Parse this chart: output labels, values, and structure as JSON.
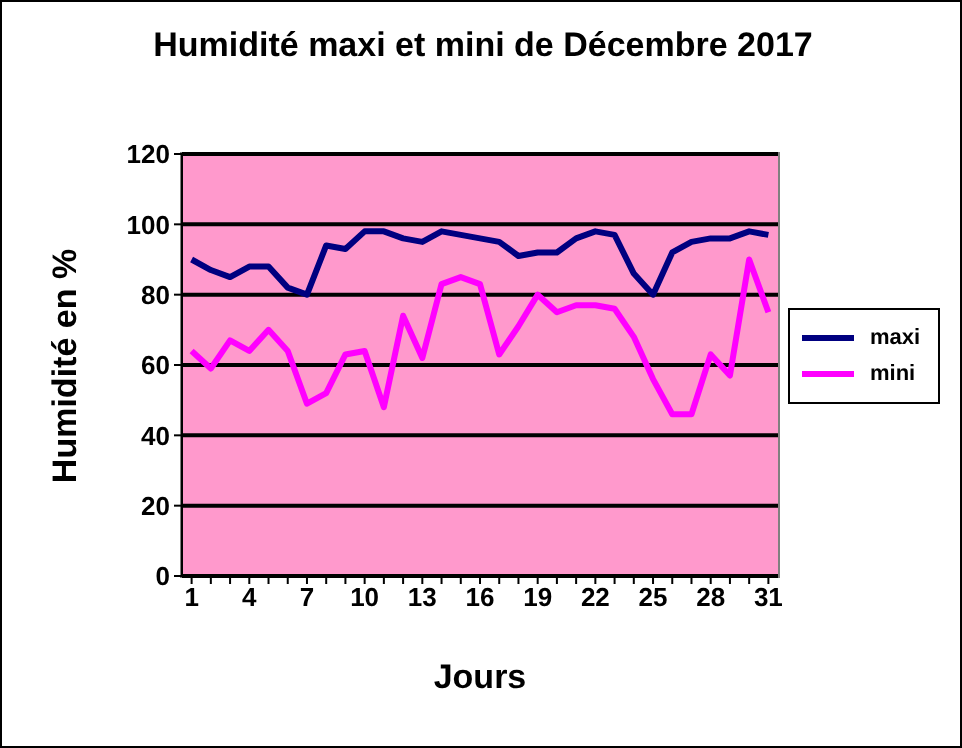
{
  "chart_data": {
    "type": "line",
    "title": "Humidité maxi et mini de Décembre 2017",
    "xlabel": "Jours",
    "ylabel": "Humidité en %",
    "x": [
      1,
      2,
      3,
      4,
      5,
      6,
      7,
      8,
      9,
      10,
      11,
      12,
      13,
      14,
      15,
      16,
      17,
      18,
      19,
      20,
      21,
      22,
      23,
      24,
      25,
      26,
      27,
      28,
      29,
      30,
      31
    ],
    "series": [
      {
        "name": "maxi",
        "color": "#000080",
        "values": [
          90,
          87,
          85,
          88,
          88,
          82,
          80,
          94,
          93,
          98,
          98,
          96,
          95,
          98,
          97,
          96,
          95,
          91,
          92,
          92,
          96,
          98,
          97,
          86,
          80,
          92,
          95,
          96,
          96,
          98,
          97
        ]
      },
      {
        "name": "mini",
        "color": "#ff00ff",
        "values": [
          64,
          59,
          67,
          64,
          70,
          64,
          49,
          52,
          63,
          64,
          48,
          74,
          62,
          83,
          85,
          83,
          63,
          71,
          80,
          75,
          77,
          77,
          76,
          68,
          56,
          46,
          46,
          63,
          57,
          90,
          75
        ]
      }
    ],
    "xlim": [
      0.5,
      31.5
    ],
    "xticks": [
      1,
      {
        "value": 2,
        "label": null
      },
      {
        "value": 3,
        "label": null
      },
      4,
      {
        "value": 5,
        "label": null
      },
      {
        "value": 6,
        "label": null
      },
      7,
      {
        "value": 8,
        "label": null
      },
      {
        "value": 9,
        "label": null
      },
      10,
      {
        "value": 11,
        "label": null
      },
      {
        "value": 12,
        "label": null
      },
      13,
      {
        "value": 14,
        "label": null
      },
      {
        "value": 15,
        "label": null
      },
      16,
      {
        "value": 17,
        "label": null
      },
      {
        "value": 18,
        "label": null
      },
      19,
      {
        "value": 20,
        "label": null
      },
      {
        "value": 21,
        "label": null
      },
      22,
      {
        "value": 23,
        "label": null
      },
      {
        "value": 24,
        "label": null
      },
      25,
      {
        "value": 26,
        "label": null
      },
      {
        "value": 27,
        "label": null
      },
      28,
      {
        "value": 29,
        "label": null
      },
      {
        "value": 30,
        "label": null
      },
      31
    ],
    "ylim": [
      0,
      120
    ],
    "yticks": [
      0,
      20,
      40,
      60,
      80,
      100,
      120
    ],
    "grid": "y",
    "legend": "right",
    "marker": "none",
    "line_style": "solid"
  }
}
